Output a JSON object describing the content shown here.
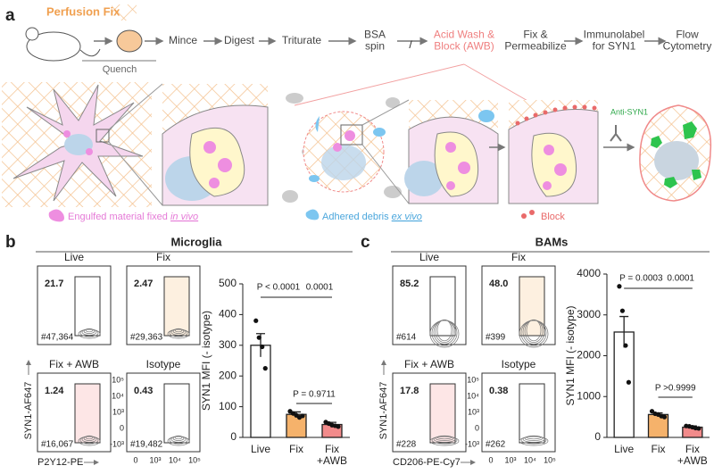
{
  "panel_a": {
    "label": "a",
    "perfusion": "Perfusion Fix",
    "quench": "Quench",
    "steps": [
      {
        "lines": [
          "Mince"
        ]
      },
      {
        "lines": [
          "Digest"
        ]
      },
      {
        "lines": [
          "Triturate"
        ]
      },
      {
        "lines": [
          "BSA",
          "spin"
        ]
      },
      {
        "lines": [
          "Acid Wash &",
          "Block (AWB)"
        ]
      },
      {
        "lines": [
          "Fix &",
          "Permeabilize"
        ]
      },
      {
        "lines": [
          "Immunolabel",
          "for SYN1"
        ]
      },
      {
        "lines": [
          "Flow",
          "Cytometry"
        ]
      }
    ],
    "separator": "/",
    "antibody": "Anti-SYN1",
    "legend": {
      "engulfed": {
        "text": "Engulfed material fixed",
        "emph": "in vivo"
      },
      "adhered": {
        "text": "Adhered debris",
        "emph": "ex vivo"
      },
      "block": "Block"
    }
  },
  "panel_b": {
    "label": "b",
    "title": "Microglia",
    "y_label": "SYN1-AF647",
    "x_label": "P2Y12-PE",
    "plots": [
      {
        "title": "Live",
        "percent": "21.7",
        "count": "#47,364"
      },
      {
        "title": "Fix",
        "percent": "2.47",
        "count": "#29,363"
      },
      {
        "title": "Fix + AWB",
        "percent": "1.24",
        "count": "#16,067"
      },
      {
        "title": "Isotype",
        "percent": "0.43",
        "count": "#19,482"
      }
    ],
    "iso_y_ticks": [
      "10⁵",
      "10⁴",
      "10³",
      "0",
      "-10³"
    ],
    "iso_x_ticks": [
      "0",
      "10³",
      "10⁴",
      "10⁵"
    ]
  },
  "panel_c": {
    "label": "c",
    "title": "BAMs",
    "y_label": "SYN1-AF647",
    "x_label": "CD206-PE-Cy7",
    "plots": [
      {
        "title": "Live",
        "percent": "85.2",
        "count": "#614"
      },
      {
        "title": "Fix",
        "percent": "48.0",
        "count": "#399"
      },
      {
        "title": "Fix + AWB",
        "percent": "17.8",
        "count": "#228"
      },
      {
        "title": "Isotype",
        "percent": "0.38",
        "count": "#262"
      }
    ],
    "iso_y_ticks": [
      "10⁵",
      "10⁴",
      "10³",
      "0",
      "-10³"
    ],
    "iso_x_ticks": [
      "0",
      "10³",
      "10⁴",
      "10⁵"
    ]
  },
  "chart_data": [
    {
      "type": "bar",
      "y_label": "SYN1 MFI (- isotype)",
      "categories": [
        "Live",
        "Fix",
        "Fix +AWB"
      ],
      "values": [
        300,
        75,
        42
      ],
      "errors": [
        38,
        8,
        7
      ],
      "points": [
        [
          380,
          325,
          295,
          225
        ],
        [
          85,
          78,
          72,
          65,
          70
        ],
        [
          50,
          45,
          40,
          38,
          35
        ]
      ],
      "colors": [
        "#ffffff",
        "#f5b26b",
        "#f28b8b"
      ],
      "ylim": [
        0,
        500
      ],
      "yticks": [
        0,
        100,
        200,
        300,
        400,
        500
      ],
      "annotations": [
        "P < 0.0001",
        "0.0001",
        "P = 0.9711"
      ]
    },
    {
      "type": "bar",
      "y_label": "SYN1 MFI (- isotype)",
      "categories": [
        "Live",
        "Fix",
        "Fix +AWB"
      ],
      "values": [
        2580,
        560,
        250
      ],
      "errors": [
        380,
        40,
        30
      ],
      "points": [
        [
          3700,
          3100,
          2250,
          1350
        ],
        [
          640,
          580,
          560,
          520,
          500
        ],
        [
          280,
          270,
          250,
          230,
          220
        ]
      ],
      "colors": [
        "#ffffff",
        "#f5b26b",
        "#f28b8b"
      ],
      "ylim": [
        0,
        4000
      ],
      "yticks": [
        0,
        1000,
        2000,
        3000,
        4000
      ],
      "annotations": [
        "P = 0.0003",
        "0.0001",
        "P >0.9999"
      ]
    }
  ]
}
